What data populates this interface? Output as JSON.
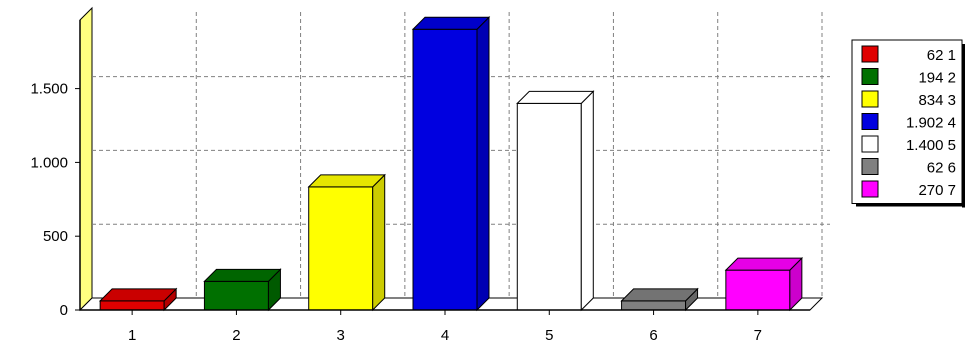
{
  "chart_data": {
    "type": "bar",
    "categories": [
      "1",
      "2",
      "3",
      "4",
      "5",
      "6",
      "7"
    ],
    "values": [
      62,
      194,
      834,
      1902,
      1400,
      62,
      270
    ],
    "value_labels": [
      "62",
      "194",
      "834",
      "1.902",
      "1.400",
      "62",
      "270"
    ],
    "colors": [
      "#e00000",
      "#007000",
      "#ffff00",
      "#0000e0",
      "#ffffff",
      "#808080",
      "#ff00ff"
    ],
    "wall_color": "#ffff80",
    "ylim": [
      0,
      1900
    ],
    "yticks": [
      0,
      500,
      1000,
      1500
    ],
    "ytick_labels": [
      "0",
      "500",
      "1.000",
      "1.500"
    ],
    "grid": true,
    "legend_position": "right",
    "title": "",
    "xlabel": "",
    "ylabel": ""
  }
}
